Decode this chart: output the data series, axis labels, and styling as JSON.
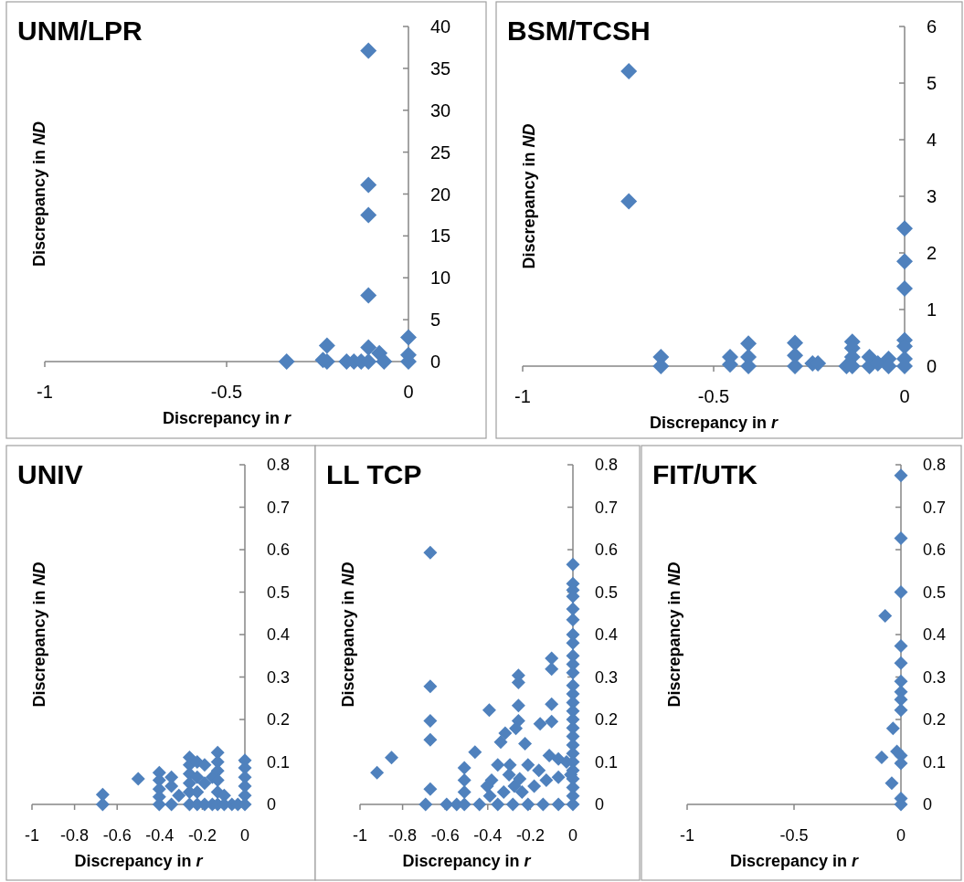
{
  "chart_data": [
    {
      "type": "scatter",
      "title": "UNM/LPR",
      "xlabel": "Discrepancy in r",
      "ylabel": "Discrepancy in ND",
      "xlim": [
        -1,
        0
      ],
      "ylim": [
        0,
        40
      ],
      "xticks": [
        -1,
        -0.5,
        0
      ],
      "yticks": [
        0,
        5,
        10,
        15,
        20,
        25,
        30,
        35,
        40
      ],
      "marker": "diamond",
      "series": [
        {
          "color": "#4f81bd",
          "x": [
            -0.11,
            -0.11,
            -0.11,
            -0.11,
            -0.335,
            -0.224,
            -0.224,
            -0.235,
            -0.17,
            -0.15,
            -0.13,
            -0.11,
            -0.11,
            -0.08,
            -0.067,
            0,
            0,
            0
          ],
          "values": [
            37.1,
            21.1,
            17.5,
            7.9,
            0,
            1.9,
            0,
            0.2,
            0,
            0,
            0,
            1.7,
            0,
            1,
            0,
            2.9,
            0.8,
            0
          ]
        }
      ]
    },
    {
      "type": "scatter",
      "title": "BSM/TCSH",
      "xlabel": "Discrepancy in r",
      "ylabel": "Discrepancy in ND",
      "xlim": [
        -1,
        0
      ],
      "ylim": [
        0,
        6
      ],
      "xticks": [
        -1,
        -0.5,
        0
      ],
      "yticks": [
        0,
        1,
        2,
        3,
        4,
        5,
        6
      ],
      "marker": "diamond",
      "series": [
        {
          "color": "#4f81bd",
          "x": [
            -0.722,
            -0.722,
            -0.638,
            -0.638,
            -0.457,
            -0.457,
            -0.409,
            -0.409,
            -0.409,
            -0.287,
            -0.287,
            -0.287,
            -0.241,
            -0.227,
            -0.152,
            -0.137,
            -0.137,
            -0.137,
            -0.137,
            -0.092,
            -0.092,
            -0.07,
            -0.042,
            -0.042,
            0,
            0,
            0,
            0,
            0,
            0,
            0
          ],
          "values": [
            5.21,
            2.91,
            0.16,
            0,
            0.16,
            0.03,
            0.4,
            0.16,
            0,
            0.41,
            0.19,
            0,
            0.05,
            0.05,
            0,
            0.43,
            0.32,
            0.16,
            0,
            0.16,
            0,
            0.05,
            0.13,
            0,
            2.43,
            1.85,
            1.37,
            0.46,
            0.35,
            0.13,
            0
          ]
        }
      ]
    },
    {
      "type": "scatter",
      "title": "UNIV",
      "xlabel": "Discrepancy in r",
      "ylabel": "Discrepancy in ND",
      "xlim": [
        -1,
        0
      ],
      "ylim": [
        0,
        0.8
      ],
      "xticks": [
        -1,
        -0.8,
        -0.6,
        -0.4,
        -0.2,
        0
      ],
      "yticks": [
        0,
        0.1,
        0.2,
        0.3,
        0.4,
        0.5,
        0.6,
        0.7,
        0.8
      ],
      "marker": "diamond",
      "series": [
        {
          "color": "#4f81bd",
          "x": [
            -0.668,
            -0.668,
            -0.501,
            -0.402,
            -0.402,
            -0.402,
            -0.402,
            -0.402,
            -0.345,
            -0.345,
            -0.345,
            -0.31,
            -0.26,
            -0.26,
            -0.26,
            -0.26,
            -0.26,
            -0.26,
            -0.224,
            -0.224,
            -0.224,
            -0.224,
            -0.189,
            -0.189,
            -0.189,
            -0.153,
            -0.153,
            -0.128,
            -0.128,
            -0.128,
            -0.128,
            -0.128,
            -0.128,
            -0.097,
            -0.097,
            -0.061,
            -0.033,
            0,
            0,
            0,
            0,
            0,
            0
          ],
          "values": [
            0.023,
            0,
            0.06,
            0.075,
            0.057,
            0.036,
            0.018,
            0,
            0.064,
            0.043,
            0,
            0.021,
            0.111,
            0.093,
            0.072,
            0.05,
            0.029,
            0,
            0.1,
            0.064,
            0.029,
            0,
            0.093,
            0.05,
            0,
            0.064,
            0,
            0.122,
            0.1,
            0.079,
            0.057,
            0.029,
            0,
            0.021,
            0,
            0,
            0,
            0.104,
            0.086,
            0.064,
            0.043,
            0.021,
            0
          ]
        }
      ]
    },
    {
      "type": "scatter",
      "title": "LL TCP",
      "xlabel": "Discrepancy in r",
      "ylabel": "Discrepancy in ND",
      "xlim": [
        -1,
        0
      ],
      "ylim": [
        0,
        0.8
      ],
      "xticks": [
        -1,
        -0.8,
        -0.6,
        -0.4,
        -0.2,
        0
      ],
      "yticks": [
        0,
        0.1,
        0.2,
        0.3,
        0.4,
        0.5,
        0.6,
        0.7,
        0.8
      ],
      "marker": "diamond",
      "series": [
        {
          "color": "#4f81bd",
          "x": [
            -0.67,
            -0.67,
            -0.67,
            -0.67,
            -0.67,
            -0.692,
            -0.92,
            -0.852,
            -0.593,
            -0.546,
            -0.51,
            -0.51,
            -0.51,
            -0.51,
            -0.46,
            -0.439,
            -0.393,
            -0.403,
            -0.382,
            -0.353,
            -0.339,
            -0.318,
            -0.296,
            -0.275,
            -0.256,
            -0.256,
            -0.256,
            -0.256,
            -0.225,
            -0.268,
            -0.211,
            -0.154,
            -0.1,
            -0.1,
            -0.1,
            -0.1,
            -0.111,
            -0.125,
            -0.353,
            -0.282,
            -0.211,
            -0.14,
            -0.068,
            -0.325,
            -0.239,
            -0.182,
            -0.068,
            -0.068,
            -0.39,
            -0.3,
            -0.25,
            -0.16,
            -0.03,
            0,
            0,
            0,
            0,
            0,
            0,
            0,
            0,
            0,
            0,
            0,
            0,
            0,
            0,
            0,
            0,
            0,
            0,
            0,
            0,
            0,
            0,
            0,
            0,
            0,
            0,
            -0.01
          ],
          "values": [
            0.593,
            0.278,
            0.197,
            0.152,
            0.036,
            0,
            0.075,
            0.11,
            0,
            0,
            0.086,
            0.057,
            0.029,
            0,
            0.123,
            0,
            0.222,
            0.043,
            0.057,
            0.093,
            0.147,
            0.168,
            0.093,
            0.043,
            0.304,
            0.287,
            0.233,
            0.197,
            0.143,
            0.179,
            0.093,
            0.19,
            0.344,
            0.319,
            0.236,
            0.195,
            0.115,
            0.057,
            0,
            0,
            0,
            0,
            0,
            0.029,
            0.029,
            0.043,
            0.064,
            0.107,
            0.02,
            0.07,
            0.06,
            0.08,
            0.1,
            0.565,
            0.52,
            0.505,
            0.49,
            0.46,
            0.435,
            0.4,
            0.38,
            0.35,
            0.33,
            0.31,
            0.28,
            0.26,
            0.24,
            0.22,
            0.2,
            0.18,
            0.16,
            0.14,
            0.12,
            0.1,
            0.08,
            0.06,
            0.04,
            0.02,
            0,
            0.07
          ]
        }
      ]
    },
    {
      "type": "scatter",
      "title": "FIT/UTK",
      "xlabel": "Discrepancy in r",
      "ylabel": "Discrepancy in ND",
      "xlim": [
        -1,
        0
      ],
      "ylim": [
        0,
        0.8
      ],
      "xticks": [
        -1,
        -0.5,
        0
      ],
      "yticks": [
        0,
        0.1,
        0.2,
        0.3,
        0.4,
        0.5,
        0.6,
        0.7,
        0.8
      ],
      "marker": "diamond",
      "series": [
        {
          "color": "#4f81bd",
          "x": [
            0,
            0,
            0,
            -0.074,
            0,
            0,
            0,
            0,
            0,
            0,
            -0.037,
            -0.09,
            -0.019,
            0,
            0,
            -0.043,
            0,
            0
          ],
          "values": [
            0.775,
            0.627,
            0.5,
            0.444,
            0.373,
            0.333,
            0.29,
            0.265,
            0.247,
            0.222,
            0.179,
            0.111,
            0.125,
            0.115,
            0.097,
            0.05,
            0.014,
            0
          ]
        }
      ]
    }
  ]
}
